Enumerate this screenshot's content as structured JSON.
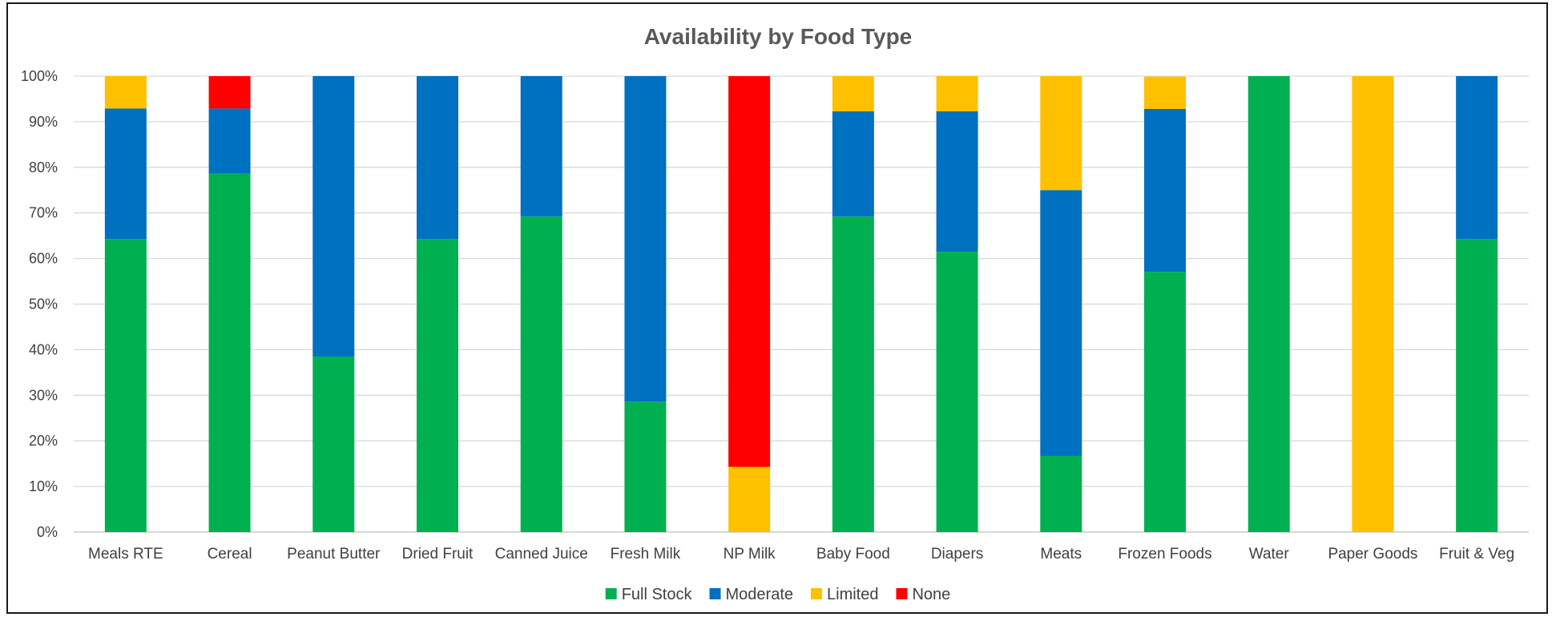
{
  "chart_data": {
    "type": "bar",
    "stacked": true,
    "title": "Availability by Food Type",
    "categories": [
      "Meals RTE",
      "Cereal",
      "Peanut Butter",
      "Dried Fruit",
      "Canned Juice",
      "Fresh Milk",
      "NP Milk",
      "Baby Food",
      "Diapers",
      "Meats",
      "Frozen Foods",
      "Water",
      "Paper Goods",
      "Fruit & Veg"
    ],
    "series": [
      {
        "name": "Full Stock",
        "color": "#00b050",
        "values": [
          64.3,
          78.6,
          38.5,
          64.3,
          69.2,
          28.6,
          0,
          69.2,
          61.5,
          16.7,
          57.1,
          100,
          0,
          64.3
        ]
      },
      {
        "name": "Moderate",
        "color": "#0070c0",
        "values": [
          28.6,
          14.3,
          61.5,
          35.7,
          30.8,
          71.4,
          0,
          23.1,
          30.8,
          58.3,
          35.7,
          0,
          0,
          35.7
        ]
      },
      {
        "name": "Limited",
        "color": "#ffc000",
        "values": [
          7.1,
          0,
          0,
          0,
          0,
          0,
          14.3,
          7.7,
          7.7,
          25.0,
          7.1,
          0,
          100,
          0
        ]
      },
      {
        "name": "None",
        "color": "#ff0000",
        "values": [
          0,
          7.1,
          0,
          0,
          0,
          0,
          85.7,
          0,
          0,
          0,
          0,
          0,
          0,
          0
        ]
      }
    ],
    "ylim": [
      0,
      100
    ],
    "yticks": [
      "0%",
      "10%",
      "20%",
      "30%",
      "40%",
      "50%",
      "60%",
      "70%",
      "80%",
      "90%",
      "100%"
    ],
    "grid": true,
    "legend_position": "bottom"
  }
}
